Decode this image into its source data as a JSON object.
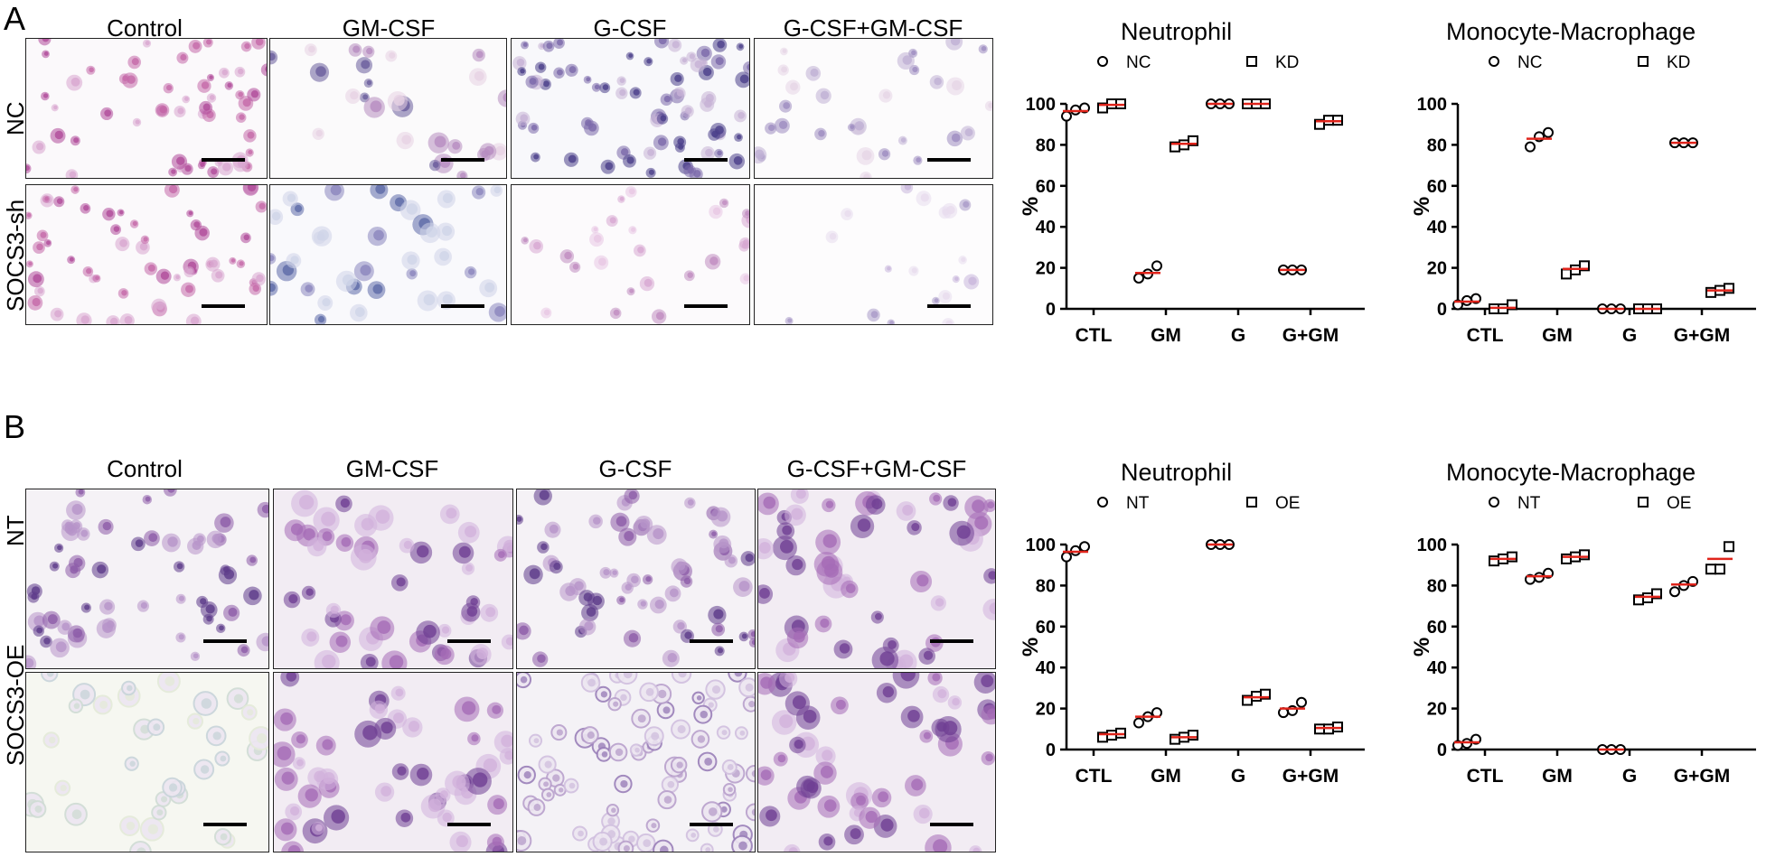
{
  "panels": [
    {
      "letter": "A",
      "columns": [
        "Control",
        "GM-CSF",
        "G-CSF",
        "G-CSF+GM-CSF"
      ],
      "rows": [
        "NC",
        "SOCS3-sh"
      ],
      "image_style": [
        [
          "pink-sparse",
          "pale-large",
          "blue-dense",
          "pale-sparse"
        ],
        [
          "pink-sparse",
          "blue-medium",
          "faint-pink",
          "faint-sparse"
        ]
      ]
    },
    {
      "letter": "B",
      "columns": [
        "Control",
        "GM-CSF",
        "G-CSF",
        "G-CSF+GM-CSF"
      ],
      "rows": [
        "NT",
        "SOCS3-OE"
      ],
      "image_style": [
        [
          "purple-dense",
          "purple-large",
          "purple-dense",
          "purple-large"
        ],
        [
          "pale-outline",
          "purple-large",
          "outline-dense",
          "purple-large"
        ]
      ]
    }
  ],
  "chart_data": [
    {
      "type": "scatter",
      "title": "Neutrophil",
      "ylabel": "%",
      "ylim": [
        0,
        100
      ],
      "yticks": [
        0,
        20,
        40,
        60,
        80,
        100
      ],
      "categories": [
        "CTL",
        "GM",
        "G",
        "G+GM"
      ],
      "series": [
        {
          "name": "NC",
          "marker": "circle",
          "values": [
            [
              94,
              97,
              98
            ],
            [
              15,
              17,
              21
            ],
            [
              100,
              100,
              100
            ],
            [
              19,
              19,
              19
            ]
          ],
          "means": [
            96.5,
            17.5,
            100,
            19
          ]
        },
        {
          "name": "KD",
          "marker": "square",
          "values": [
            [
              98,
              100,
              100
            ],
            [
              79,
              80,
              82
            ],
            [
              100,
              100,
              100
            ],
            [
              90,
              92,
              92
            ]
          ],
          "means": [
            99.5,
            80.5,
            100,
            91.5
          ]
        }
      ],
      "legend_placement": "top"
    },
    {
      "type": "scatter",
      "title": "Monocyte-Macrophage",
      "ylabel": "%",
      "ylim": [
        0,
        100
      ],
      "yticks": [
        0,
        20,
        40,
        60,
        80,
        100
      ],
      "categories": [
        "CTL",
        "GM",
        "G",
        "G+GM"
      ],
      "series": [
        {
          "name": "NC",
          "marker": "circle",
          "values": [
            [
              2,
              4,
              5
            ],
            [
              79,
              84,
              86
            ],
            [
              0,
              0,
              0
            ],
            [
              81,
              81,
              81
            ]
          ],
          "means": [
            3.5,
            83,
            0,
            81
          ]
        },
        {
          "name": "KD",
          "marker": "square",
          "values": [
            [
              0,
              0,
              2
            ],
            [
              17,
              19,
              21
            ],
            [
              0,
              0,
              0
            ],
            [
              8,
              9,
              10
            ]
          ],
          "means": [
            0.5,
            19.5,
            0,
            9
          ]
        }
      ],
      "legend_placement": "top"
    },
    {
      "type": "scatter",
      "title": "Neutrophil",
      "ylabel": "%",
      "ylim": [
        0,
        100
      ],
      "yticks": [
        0,
        20,
        40,
        60,
        80,
        100
      ],
      "categories": [
        "CTL",
        "GM",
        "G",
        "G+GM"
      ],
      "series": [
        {
          "name": "NT",
          "marker": "circle",
          "values": [
            [
              94,
              97,
              99
            ],
            [
              13,
              16,
              18
            ],
            [
              100,
              100,
              100
            ],
            [
              18,
              19,
              23
            ]
          ],
          "means": [
            96.5,
            16,
            100,
            20
          ]
        },
        {
          "name": "OE",
          "marker": "square",
          "values": [
            [
              6,
              7,
              8
            ],
            [
              5,
              6,
              7
            ],
            [
              24,
              26,
              27
            ],
            [
              10,
              10,
              11
            ]
          ],
          "means": [
            7.5,
            6,
            25.5,
            10.5
          ]
        }
      ],
      "legend_placement": "top"
    },
    {
      "type": "scatter",
      "title": "Monocyte-Macrophage",
      "ylabel": "%",
      "ylim": [
        0,
        100
      ],
      "yticks": [
        0,
        20,
        40,
        60,
        80,
        100
      ],
      "categories": [
        "CTL",
        "GM",
        "G",
        "G+GM"
      ],
      "series": [
        {
          "name": "NT",
          "marker": "circle",
          "values": [
            [
              2,
              3,
              5
            ],
            [
              83,
              84,
              86
            ],
            [
              0,
              0,
              0
            ],
            [
              77,
              80,
              82
            ]
          ],
          "means": [
            3.5,
            84.5,
            0,
            80.5
          ]
        },
        {
          "name": "OE",
          "marker": "square",
          "values": [
            [
              92,
              93,
              94
            ],
            [
              93,
              94,
              95
            ],
            [
              73,
              74,
              76
            ],
            [
              88,
              88,
              99
            ]
          ],
          "means": [
            93,
            94,
            74.5,
            93
          ]
        }
      ],
      "legend_placement": "top"
    }
  ]
}
